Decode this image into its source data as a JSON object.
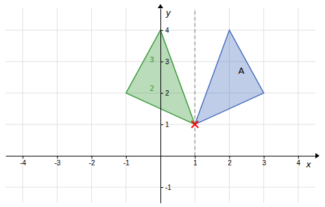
{
  "chart_data": {
    "type": "polygon",
    "xlabel": "x",
    "ylabel": "y",
    "xlim": [
      -4.5,
      4.5
    ],
    "ylim": [
      -1.5,
      4.7
    ],
    "xticks": [
      -4,
      -3,
      -2,
      -1,
      1,
      2,
      3,
      4
    ],
    "yticks": [
      -1,
      1,
      2,
      3,
      4
    ],
    "grid": true,
    "series": [
      {
        "type": "polygon",
        "x": [
          0,
          -1,
          1
        ],
        "values": [
          4,
          2,
          1
        ],
        "color": "#3a9a3a"
      },
      {
        "type": "polygon",
        "x": [
          2,
          1,
          3
        ],
        "values": [
          4,
          1,
          2
        ],
        "color": "#4a6fbe"
      },
      {
        "type": "line",
        "x": [
          1,
          1
        ],
        "values": [
          0,
          4.7
        ],
        "color": "#888888",
        "line_style": "dashed"
      },
      {
        "type": "scatter",
        "x": [
          1
        ],
        "values": [
          1
        ],
        "color": "#ff0000",
        "marker": "x"
      }
    ],
    "annotations": [
      {
        "text": "A",
        "x": 2.35,
        "y": 2.7
      },
      {
        "text": "2",
        "x": -0.25,
        "y": 2.15,
        "color": "#3a9a3a"
      },
      {
        "text": "3",
        "x": -0.25,
        "y": 3.05,
        "color": "#3a9a3a"
      }
    ]
  }
}
